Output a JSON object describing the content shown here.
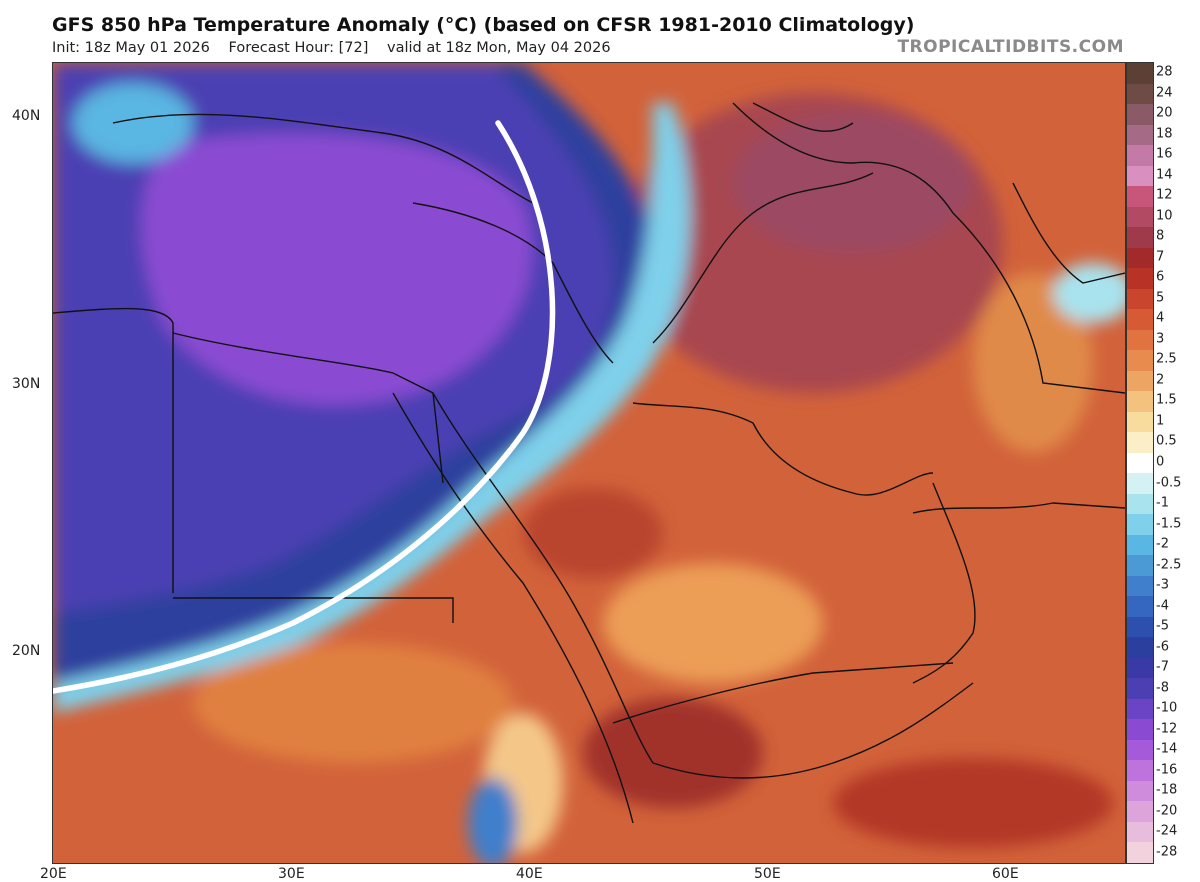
{
  "header": {
    "title": "GFS 850 hPa Temperature Anomaly (°C) (based on CFSR 1981-2010 Climatology)",
    "init": "Init: 18z May 01 2026",
    "forecast_hour": "Forecast Hour: [72]",
    "valid": "valid at 18z Mon, May 04 2026",
    "brand": "TROPICALTIDBITS.COM"
  },
  "map": {
    "latitude_labels": [
      "40N",
      "30N",
      "20N"
    ],
    "longitude_labels": [
      "20E",
      "30E",
      "40E",
      "50E",
      "60E"
    ]
  },
  "legend": {
    "unit": "°C",
    "levels": [
      {
        "label": "28",
        "color": "#5c4033"
      },
      {
        "label": "24",
        "color": "#6e4b45"
      },
      {
        "label": "20",
        "color": "#8a5a66"
      },
      {
        "label": "18",
        "color": "#a56a86"
      },
      {
        "label": "16",
        "color": "#c47aa6"
      },
      {
        "label": "14",
        "color": "#d98fc0"
      },
      {
        "label": "12",
        "color": "#c7567a"
      },
      {
        "label": "10",
        "color": "#b24a63"
      },
      {
        "label": "8",
        "color": "#9e3a4a"
      },
      {
        "label": "7",
        "color": "#a32a2a"
      },
      {
        "label": "6",
        "color": "#b83325"
      },
      {
        "label": "5",
        "color": "#c9452c"
      },
      {
        "label": "4",
        "color": "#d65a34"
      },
      {
        "label": "3",
        "color": "#e0733f"
      },
      {
        "label": "2.5",
        "color": "#e78b4e"
      },
      {
        "label": "2",
        "color": "#eda563"
      },
      {
        "label": "1.5",
        "color": "#f3c27e"
      },
      {
        "label": "1",
        "color": "#f8dc9e"
      },
      {
        "label": "0.5",
        "color": "#fcefc8"
      },
      {
        "label": "0",
        "color": "#ffffff"
      },
      {
        "label": "-0.5",
        "color": "#d4f1f4"
      },
      {
        "label": "-1",
        "color": "#a9e3ee"
      },
      {
        "label": "-1.5",
        "color": "#7fd0ea"
      },
      {
        "label": "-2",
        "color": "#5ab6e2"
      },
      {
        "label": "-2.5",
        "color": "#4b9ad6"
      },
      {
        "label": "-3",
        "color": "#3f7fcb"
      },
      {
        "label": "-4",
        "color": "#3566c0"
      },
      {
        "label": "-5",
        "color": "#2d4fae"
      },
      {
        "label": "-6",
        "color": "#2b3f9e"
      },
      {
        "label": "-7",
        "color": "#3a3aa6"
      },
      {
        "label": "-8",
        "color": "#4b3fb3"
      },
      {
        "label": "-10",
        "color": "#6a44c4"
      },
      {
        "label": "-12",
        "color": "#8a4bd2"
      },
      {
        "label": "-14",
        "color": "#a55bd9"
      },
      {
        "label": "-16",
        "color": "#bd72dc"
      },
      {
        "label": "-18",
        "color": "#d08cdc"
      },
      {
        "label": "-20",
        "color": "#dda4dc"
      },
      {
        "label": "-24",
        "color": "#e8bcdd"
      },
      {
        "label": "-28",
        "color": "#f2d2dc"
      }
    ]
  }
}
